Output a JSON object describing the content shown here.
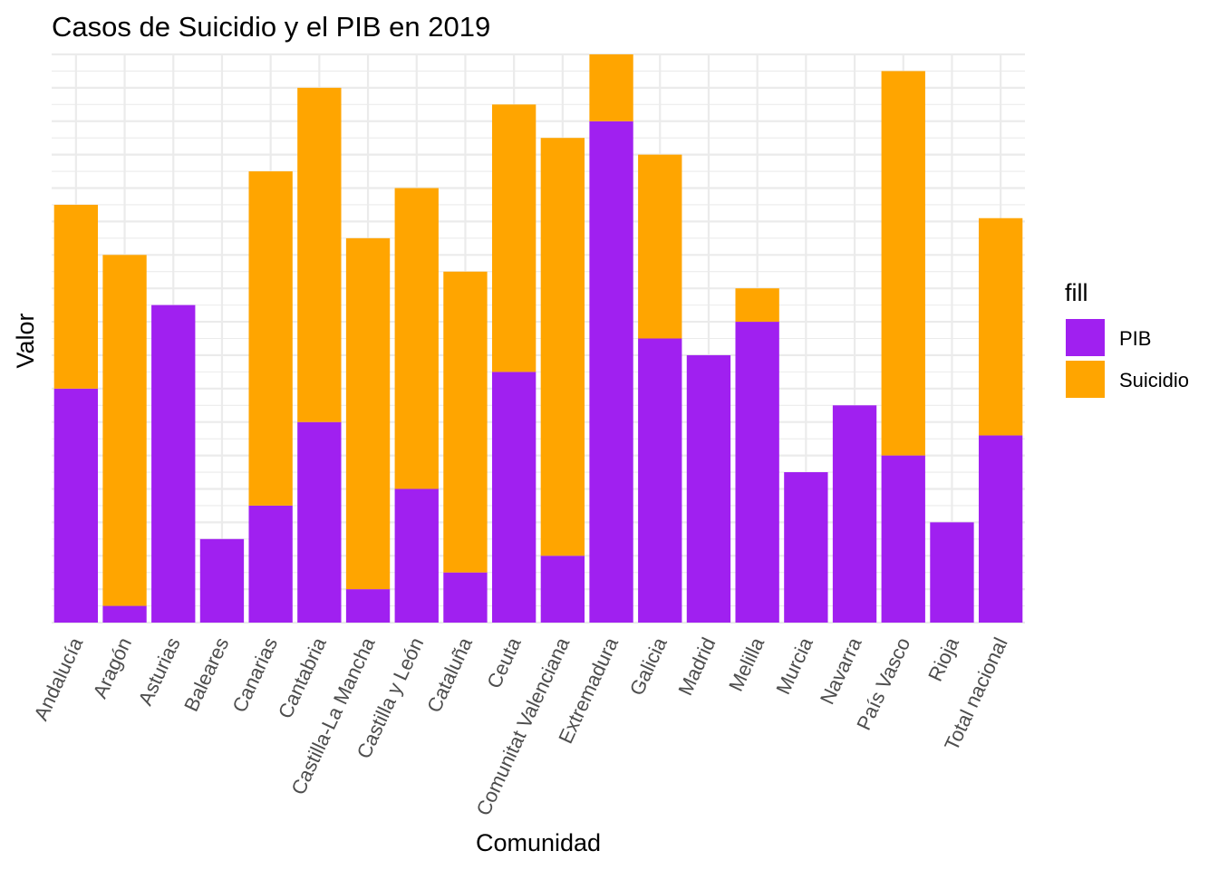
{
  "chart_data": {
    "type": "bar",
    "stacked": true,
    "title": "Casos de Suicidio y el PIB en 2019",
    "xlabel": "Comunidad",
    "ylabel": "Valor",
    "categories": [
      "Andalucía",
      "Aragón",
      "Asturias",
      "Baleares",
      "Canarias",
      "Cantabria",
      "Castilla-La Mancha",
      "Castilla y León",
      "Cataluña",
      "Ceuta",
      "Comunitat Valenciana",
      "Extremadura",
      "Galicia",
      "Madrid",
      "Melilla",
      "Murcia",
      "Navarra",
      "País Vasco",
      "Rioja",
      "Total nacional"
    ],
    "series": [
      {
        "name": "PIB",
        "color": "#a020f0",
        "values": [
          14,
          1,
          19,
          5,
          7,
          12,
          2,
          8,
          3,
          15,
          4,
          30,
          17,
          16,
          18,
          9,
          13,
          10,
          6,
          11.2
        ]
      },
      {
        "name": "Suicidio",
        "color": "#ffa500",
        "values": [
          11,
          21,
          0,
          0,
          20,
          20,
          21,
          18,
          18,
          16,
          25,
          4,
          11,
          0,
          2,
          0,
          0,
          23,
          0,
          13
        ]
      }
    ],
    "ylim": [
      0,
      34
    ],
    "y_ticks_shown": false,
    "grid": true,
    "legend": {
      "title": "fill",
      "position": "right",
      "entries": [
        "PIB",
        "Suicidio"
      ]
    }
  }
}
